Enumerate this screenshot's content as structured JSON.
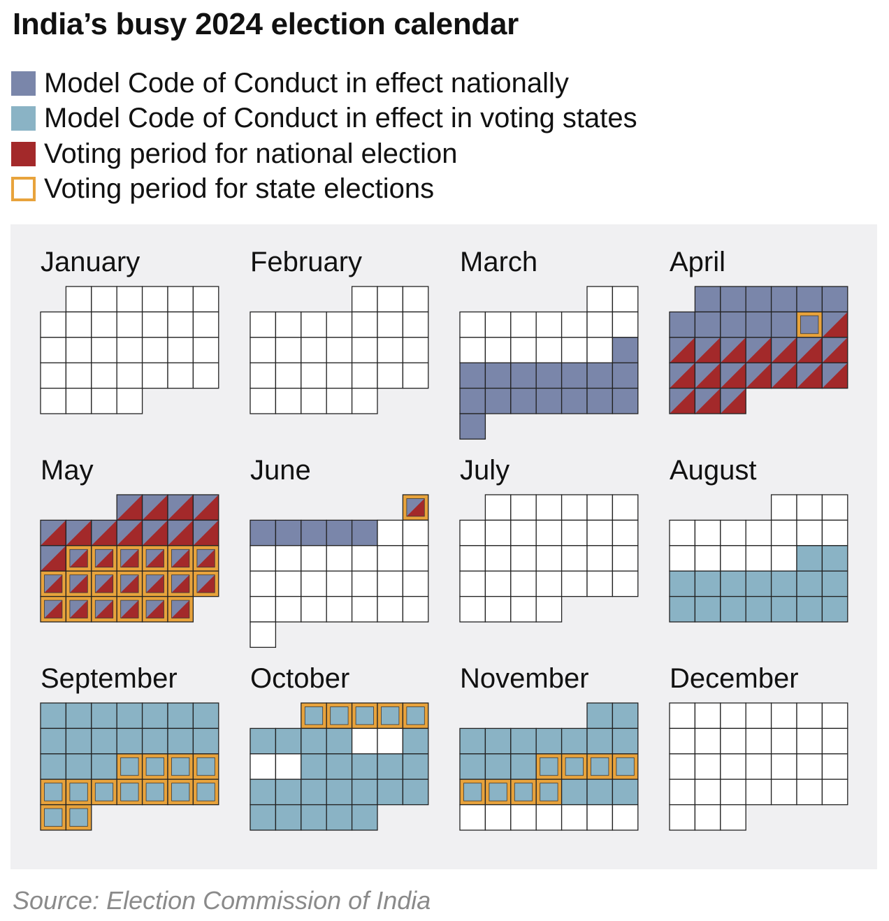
{
  "title": "India’s busy 2024 election calendar",
  "source": "Source: Election Commission of India",
  "colors": {
    "national": "#7a86aa",
    "states": "#8ab3c5",
    "voting": "#a3292a",
    "state_border": "#e8a33c",
    "empty": "#ffffff",
    "gridline": "#222222",
    "panel": "#f0f0f2"
  },
  "legend": [
    {
      "key": "national",
      "label": "Model Code of Conduct in effect nationally"
    },
    {
      "key": "states",
      "label": "Model Code of Conduct in effect in voting states"
    },
    {
      "key": "voting",
      "label": "Voting period for national election"
    },
    {
      "key": "state_vote",
      "label": "Voting period for state elections"
    }
  ],
  "chart_data": {
    "type": "calendar",
    "year": 2024,
    "week_start": "Sunday",
    "categories": [
      "national",
      "states",
      "voting",
      "state_vote"
    ],
    "months": [
      {
        "name": "January",
        "start_weekday": 1,
        "days": 31,
        "national": [],
        "states": [],
        "voting": [],
        "state_vote": []
      },
      {
        "name": "February",
        "start_weekday": 4,
        "days": 29,
        "national": [],
        "states": [],
        "voting": [],
        "state_vote": []
      },
      {
        "name": "March",
        "start_weekday": 5,
        "days": 31,
        "national": [
          16,
          31
        ],
        "states": [],
        "voting": [],
        "state_vote": []
      },
      {
        "name": "April",
        "start_weekday": 1,
        "days": 30,
        "national": [
          1,
          30
        ],
        "states": [],
        "voting": [
          13,
          30
        ],
        "state_vote": [
          12
        ]
      },
      {
        "name": "May",
        "start_weekday": 3,
        "days": 31,
        "national": [
          1,
          31
        ],
        "states": [],
        "voting": [
          1,
          31
        ],
        "state_vote": [
          13,
          31
        ]
      },
      {
        "name": "June",
        "start_weekday": 6,
        "days": 30,
        "national": [
          1,
          6
        ],
        "states": [],
        "voting": [
          1,
          1
        ],
        "state_vote": [
          1
        ]
      },
      {
        "name": "July",
        "start_weekday": 1,
        "days": 31,
        "national": [],
        "states": [],
        "voting": [],
        "state_vote": []
      },
      {
        "name": "August",
        "start_weekday": 4,
        "days": 31,
        "national": [],
        "states": [
          16,
          31
        ],
        "voting": [],
        "state_vote": []
      },
      {
        "name": "September",
        "start_weekday": 0,
        "days": 30,
        "national": [],
        "states": [
          1,
          30
        ],
        "voting": [],
        "state_vote": [
          18,
          19,
          20,
          21,
          22,
          23,
          24,
          25,
          26,
          27,
          28,
          29,
          30
        ]
      },
      {
        "name": "October",
        "start_weekday": 2,
        "days": 31,
        "national": [],
        "states": [
          1,
          31
        ],
        "states_excluded": [
          10,
          11,
          13,
          14
        ],
        "voting": [],
        "state_vote": [
          1,
          5
        ]
      },
      {
        "name": "November",
        "start_weekday": 5,
        "days": 30,
        "national": [],
        "states": [
          1,
          23
        ],
        "voting": [],
        "state_vote": [
          13,
          14,
          15,
          16,
          17,
          18,
          19,
          20
        ]
      },
      {
        "name": "December",
        "start_weekday": 0,
        "days": 31,
        "national": [],
        "states": [],
        "voting": [],
        "state_vote": []
      }
    ]
  }
}
